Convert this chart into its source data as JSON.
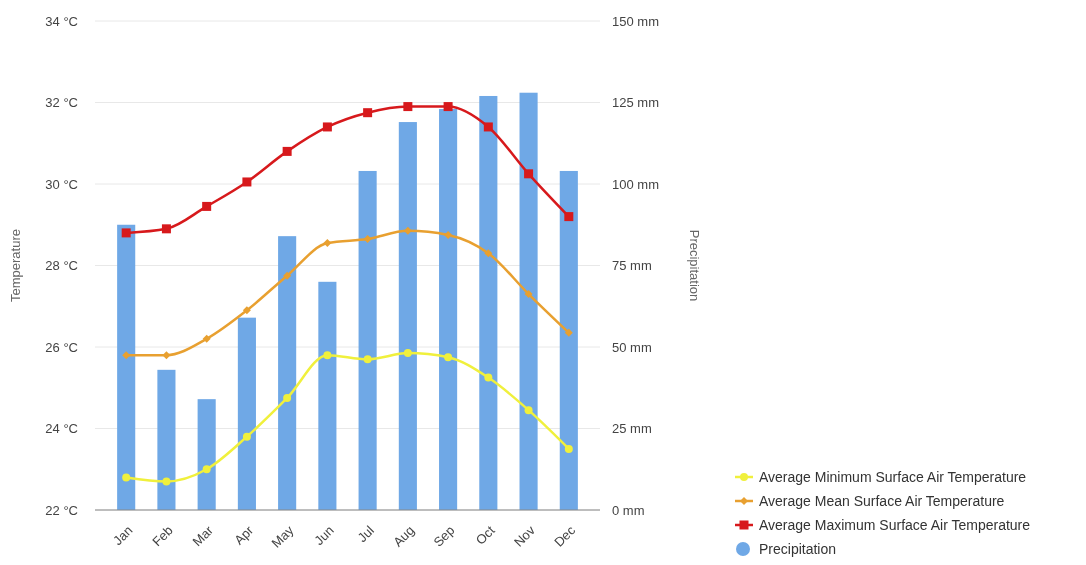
{
  "chart_data": {
    "type": "line",
    "categories": [
      "Jan",
      "Feb",
      "Mar",
      "Apr",
      "May",
      "Jun",
      "Jul",
      "Aug",
      "Sep",
      "Oct",
      "Nov",
      "Dec"
    ],
    "ylabel": "Temperature",
    "y2label": "Precipitation",
    "ylim": [
      22,
      34
    ],
    "yticks": [
      {
        "value": 22,
        "label": "22 °C"
      },
      {
        "value": 24,
        "label": "24 °C"
      },
      {
        "value": 26,
        "label": "26 °C"
      },
      {
        "value": 28,
        "label": "28 °C"
      },
      {
        "value": 30,
        "label": "30 °C"
      },
      {
        "value": 32,
        "label": "32 °C"
      },
      {
        "value": 34,
        "label": "34 °C"
      }
    ],
    "y2lim": [
      0,
      150
    ],
    "y2ticks": [
      {
        "value": 0,
        "label": "0 mm"
      },
      {
        "value": 25,
        "label": "25 mm"
      },
      {
        "value": 50,
        "label": "50 mm"
      },
      {
        "value": 75,
        "label": "75 mm"
      },
      {
        "value": 100,
        "label": "100 mm"
      },
      {
        "value": 125,
        "label": "125 mm"
      },
      {
        "value": 150,
        "label": "150 mm"
      }
    ],
    "grid": "y",
    "legend": "bottom right",
    "series": [
      {
        "name": "Average Minimum Surface Air Temperature",
        "axis": "y",
        "color": "#f0f03c",
        "marker": "circle",
        "values": [
          22.8,
          22.7,
          23.0,
          23.8,
          24.75,
          25.8,
          25.7,
          25.85,
          25.75,
          25.25,
          24.45,
          23.5
        ]
      },
      {
        "name": "Average Mean Surface Air Temperature",
        "axis": "y",
        "color": "#e8a030",
        "marker": "diamond",
        "values": [
          25.8,
          25.8,
          26.2,
          26.9,
          27.75,
          28.55,
          28.65,
          28.85,
          28.75,
          28.3,
          27.3,
          26.35
        ]
      },
      {
        "name": "Average Maximum Surface Air Temperature",
        "axis": "y",
        "color": "#d7191c",
        "marker": "square",
        "values": [
          28.8,
          28.9,
          29.45,
          30.05,
          30.8,
          31.4,
          31.75,
          31.9,
          31.9,
          31.4,
          30.25,
          29.2
        ]
      },
      {
        "name": "Precipitation",
        "type": "bar",
        "axis": "y2",
        "color": "#6fa8e6",
        "values": [
          87.5,
          43,
          34,
          59,
          84,
          70,
          104,
          119,
          123,
          127,
          128,
          104
        ]
      }
    ]
  }
}
